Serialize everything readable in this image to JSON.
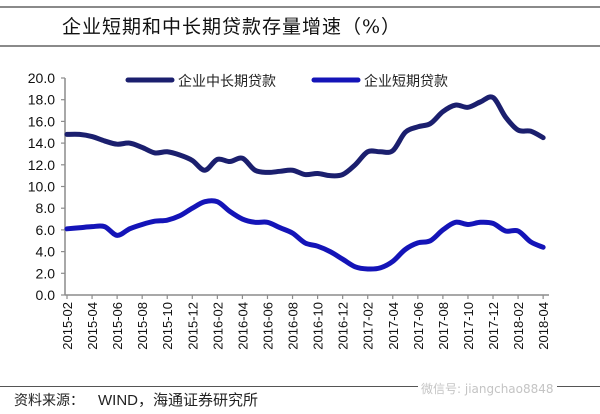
{
  "title": "企业短期和中长期贷款存量增速（%）",
  "source": {
    "label": "资料来源：",
    "text": "WIND，海通证券研究所"
  },
  "watermark": "微信号: jiangchao8848",
  "colors": {
    "long_term": "#1b1f6e",
    "short_term": "#1414b8",
    "axis": "#8c8c8c"
  },
  "chart_data": {
    "type": "line",
    "title": "企业短期和中长期贷款存量增速（%）",
    "xlabel": "",
    "ylabel": "",
    "ylim": [
      0,
      20
    ],
    "yticks": [
      "0.0",
      "2.0",
      "4.0",
      "6.0",
      "8.0",
      "10.0",
      "12.0",
      "14.0",
      "16.0",
      "18.0",
      "20.0"
    ],
    "xtick_labels": [
      "2015-02",
      "2015-04",
      "2015-06",
      "2015-08",
      "2015-10",
      "2015-12",
      "2016-02",
      "2016-04",
      "2016-06",
      "2016-08",
      "2016-10",
      "2016-12",
      "2017-02",
      "2017-04",
      "2017-06",
      "2017-08",
      "2017-10",
      "2017-12",
      "2018-02",
      "2018-04"
    ],
    "x": [
      "2015-02",
      "2015-03",
      "2015-04",
      "2015-05",
      "2015-06",
      "2015-07",
      "2015-08",
      "2015-09",
      "2015-10",
      "2015-11",
      "2015-12",
      "2016-01",
      "2016-02",
      "2016-03",
      "2016-04",
      "2016-05",
      "2016-06",
      "2016-07",
      "2016-08",
      "2016-09",
      "2016-10",
      "2016-11",
      "2016-12",
      "2017-01",
      "2017-02",
      "2017-03",
      "2017-04",
      "2017-05",
      "2017-06",
      "2017-07",
      "2017-08",
      "2017-09",
      "2017-10",
      "2017-11",
      "2017-12",
      "2018-01",
      "2018-02",
      "2018-03",
      "2018-04"
    ],
    "legend_position": "top",
    "grid": false,
    "series": [
      {
        "name": "企业中长期贷款",
        "values": [
          14.8,
          14.8,
          14.6,
          14.2,
          13.9,
          14.0,
          13.6,
          13.1,
          13.2,
          12.9,
          12.4,
          11.5,
          12.5,
          12.3,
          12.6,
          11.5,
          11.3,
          11.4,
          11.5,
          11.1,
          11.2,
          11.0,
          11.1,
          12.0,
          13.2,
          13.2,
          13.3,
          15.0,
          15.5,
          15.8,
          16.9,
          17.5,
          17.3,
          17.8,
          18.2,
          16.4,
          15.2,
          15.1,
          14.5
        ]
      },
      {
        "name": "企业短期贷款",
        "values": [
          6.1,
          6.2,
          6.3,
          6.3,
          5.5,
          6.1,
          6.5,
          6.8,
          6.9,
          7.3,
          8.0,
          8.6,
          8.6,
          7.7,
          7.0,
          6.7,
          6.7,
          6.2,
          5.7,
          4.8,
          4.5,
          4.0,
          3.3,
          2.6,
          2.4,
          2.5,
          3.1,
          4.2,
          4.8,
          5.0,
          6.0,
          6.7,
          6.5,
          6.7,
          6.6,
          5.9,
          5.9,
          4.9,
          4.4
        ]
      }
    ]
  }
}
